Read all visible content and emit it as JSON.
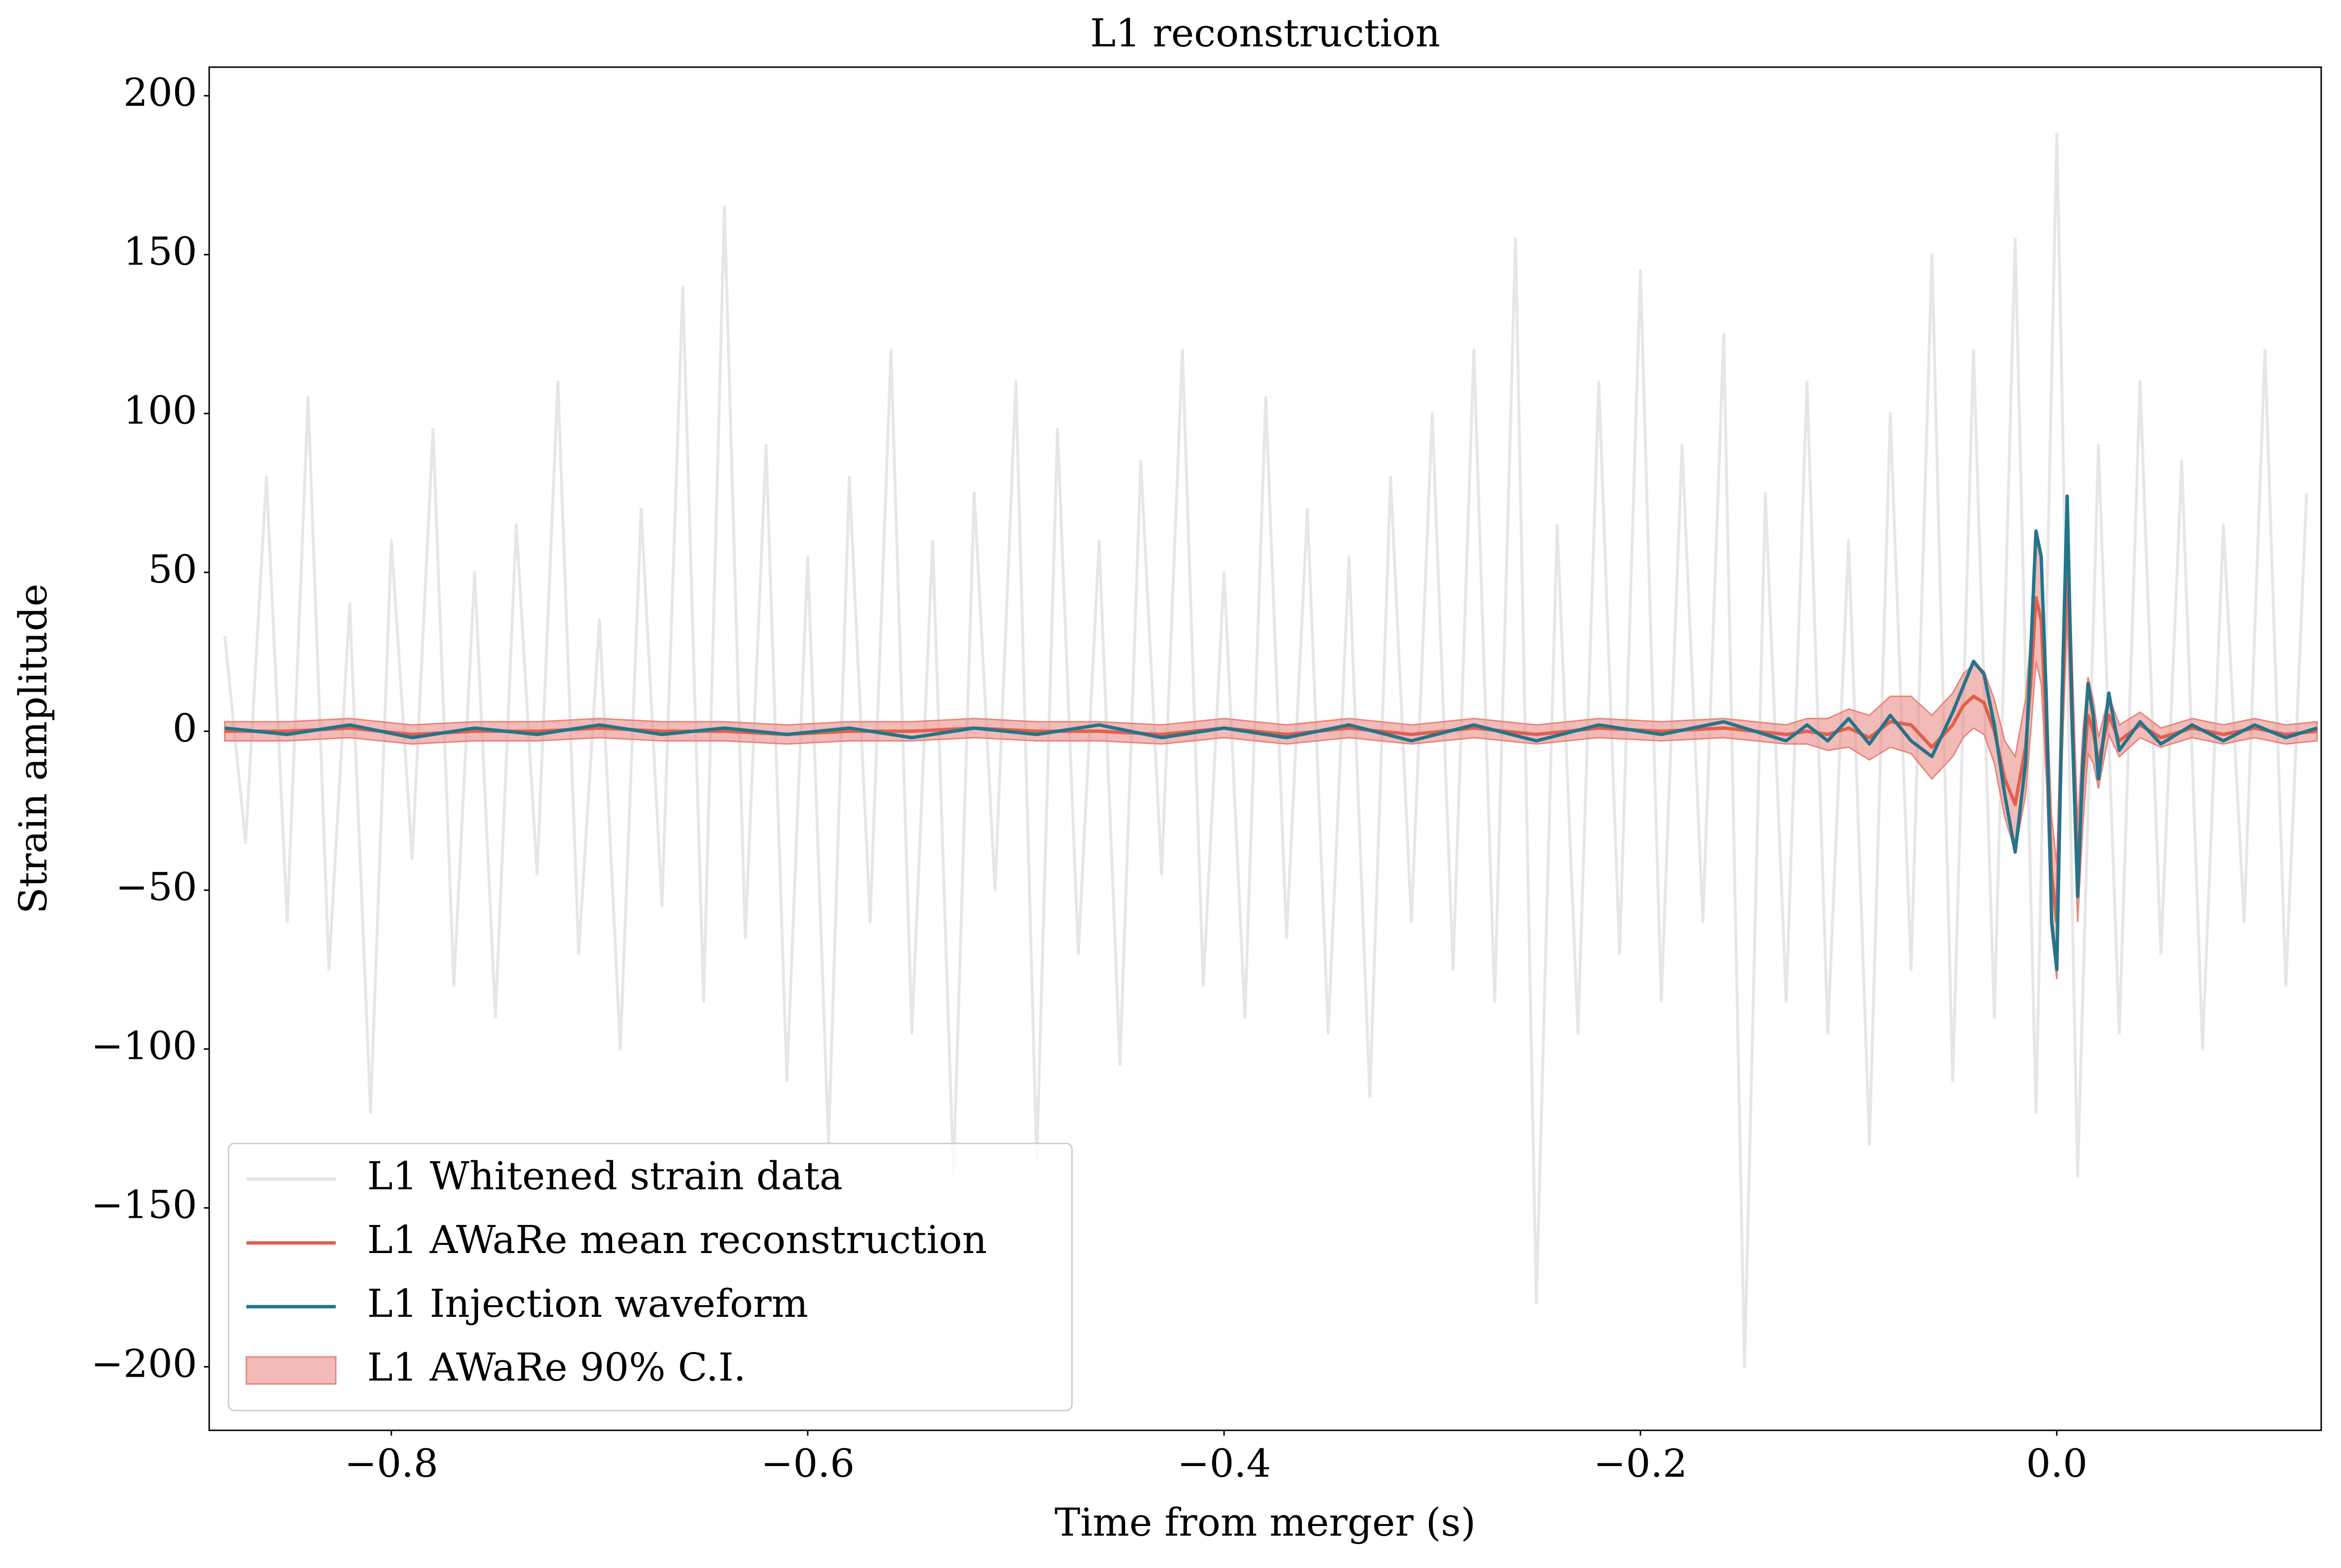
{
  "chart_data": {
    "type": "line",
    "title": "L1 reconstruction",
    "xlabel": "Time from merger (s)",
    "ylabel": "Strain amplitude",
    "xlim": [
      -0.8875,
      0.127
    ],
    "ylim": [
      -220,
      209
    ],
    "xticks": [
      {
        "value": -0.8,
        "label": "−0.8"
      },
      {
        "value": -0.6,
        "label": "−0.6"
      },
      {
        "value": -0.4,
        "label": "−0.4"
      },
      {
        "value": -0.2,
        "label": "−0.2"
      },
      {
        "value": 0,
        "label": "0.0"
      }
    ],
    "yticks": [
      {
        "value": -200,
        "label": "−200"
      },
      {
        "value": -150,
        "label": "−150"
      },
      {
        "value": -100,
        "label": "−100"
      },
      {
        "value": -50,
        "label": "−50"
      },
      0,
      50,
      100,
      150,
      200
    ],
    "grid": false,
    "legend": "lower left",
    "x": [
      -0.88,
      -0.85,
      -0.82,
      -0.79,
      -0.76,
      -0.73,
      -0.7,
      -0.67,
      -0.64,
      -0.61,
      -0.58,
      -0.55,
      -0.52,
      -0.49,
      -0.46,
      -0.43,
      -0.4,
      -0.37,
      -0.34,
      -0.31,
      -0.28,
      -0.25,
      -0.22,
      -0.19,
      -0.16,
      -0.13,
      -0.12,
      -0.11,
      -0.1,
      -0.09,
      -0.08,
      -0.07,
      -0.06,
      -0.05,
      -0.045,
      -0.04,
      -0.035,
      -0.03,
      -0.025,
      -0.02,
      -0.015,
      -0.0125,
      -0.01,
      -0.0075,
      -0.005,
      -0.0025,
      0,
      0.0025,
      0.005,
      0.0075,
      0.01,
      0.0125,
      0.015,
      0.0175,
      0.02,
      0.025,
      0.03,
      0.04,
      0.05,
      0.065,
      0.08,
      0.095,
      0.11,
      0.125
    ],
    "series": [
      {
        "name": "L1 Whitened strain data",
        "kind": "line",
        "color": "#e6e6e6",
        "x": [
          -0.88,
          -0.87,
          -0.86,
          -0.85,
          -0.84,
          -0.83,
          -0.82,
          -0.81,
          -0.8,
          -0.79,
          -0.78,
          -0.77,
          -0.76,
          -0.75,
          -0.74,
          -0.73,
          -0.72,
          -0.71,
          -0.7,
          -0.69,
          -0.68,
          -0.67,
          -0.66,
          -0.65,
          -0.64,
          -0.63,
          -0.62,
          -0.61,
          -0.6,
          -0.59,
          -0.58,
          -0.57,
          -0.56,
          -0.55,
          -0.54,
          -0.53,
          -0.52,
          -0.51,
          -0.5,
          -0.49,
          -0.48,
          -0.47,
          -0.46,
          -0.45,
          -0.44,
          -0.43,
          -0.42,
          -0.41,
          -0.4,
          -0.39,
          -0.38,
          -0.37,
          -0.36,
          -0.35,
          -0.34,
          -0.33,
          -0.32,
          -0.31,
          -0.3,
          -0.29,
          -0.28,
          -0.27,
          -0.26,
          -0.25,
          -0.24,
          -0.23,
          -0.22,
          -0.21,
          -0.2,
          -0.19,
          -0.18,
          -0.17,
          -0.16,
          -0.15,
          -0.14,
          -0.13,
          -0.12,
          -0.11,
          -0.1,
          -0.09,
          -0.08,
          -0.07,
          -0.06,
          -0.05,
          -0.04,
          -0.03,
          -0.02,
          -0.01,
          0,
          0.01,
          0.02,
          0.03,
          0.04,
          0.05,
          0.06,
          0.07,
          0.08,
          0.09,
          0.1,
          0.11,
          0.12
        ],
        "values": [
          30,
          -35,
          80,
          -60,
          105,
          -75,
          40,
          -120,
          60,
          -40,
          95,
          -80,
          50,
          -90,
          65,
          -45,
          110,
          -70,
          35,
          -100,
          70,
          -55,
          140,
          -85,
          165,
          -65,
          90,
          -110,
          55,
          -130,
          80,
          -60,
          120,
          -95,
          60,
          -140,
          75,
          -50,
          110,
          -135,
          95,
          -70,
          60,
          -105,
          85,
          -45,
          120,
          -80,
          50,
          -90,
          105,
          -65,
          70,
          -95,
          55,
          -115,
          80,
          -60,
          100,
          -75,
          120,
          -85,
          155,
          -180,
          65,
          -95,
          110,
          -70,
          145,
          -85,
          90,
          -60,
          125,
          -200,
          75,
          -85,
          110,
          -95,
          60,
          -130,
          100,
          -75,
          150,
          -110,
          120,
          -90,
          155,
          -120,
          188,
          -140,
          90,
          -95,
          110,
          -70,
          85,
          -100,
          65,
          -60,
          120,
          -80,
          75
        ]
      },
      {
        "name": "L1 AWaRe mean reconstruction",
        "kind": "line",
        "color": "#e0604d",
        "values": [
          0,
          0,
          1,
          -1,
          0,
          0,
          1,
          0,
          0,
          -1,
          0,
          0,
          1,
          0,
          0,
          -1,
          1,
          -1,
          1,
          -1,
          1,
          -1,
          1,
          0,
          1,
          -1,
          0,
          -1,
          1,
          -2,
          3,
          2,
          -5,
          2,
          8,
          11,
          9,
          0,
          -15,
          -23,
          -5,
          15,
          42,
          35,
          0,
          -45,
          -60,
          5,
          55,
          5,
          -45,
          -15,
          5,
          0,
          -10,
          5,
          -3,
          2,
          -2,
          1,
          -1,
          1,
          -1,
          0
        ]
      },
      {
        "name": "L1 Injection waveform",
        "kind": "line",
        "color": "#24748a",
        "values": [
          1,
          -1,
          2,
          -2,
          1,
          -1,
          2,
          -1,
          1,
          -1,
          1,
          -2,
          1,
          -1,
          2,
          -2,
          1,
          -2,
          2,
          -3,
          2,
          -3,
          2,
          -1,
          3,
          -3,
          2,
          -3,
          4,
          -4,
          5,
          -3,
          -8,
          6,
          14,
          22,
          18,
          2,
          -20,
          -38,
          -10,
          25,
          63,
          55,
          10,
          -60,
          -75,
          10,
          74,
          0,
          -52,
          -10,
          15,
          5,
          -15,
          12,
          -6,
          3,
          -4,
          2,
          -3,
          2,
          -2,
          1
        ]
      },
      {
        "name": "L1 AWaRe 90% C.I.",
        "kind": "band",
        "color": "#e8847c",
        "lower": [
          -3,
          -3,
          -2,
          -4,
          -3,
          -3,
          -2,
          -3,
          -3,
          -4,
          -3,
          -3,
          -2,
          -3,
          -3,
          -4,
          -2,
          -4,
          -2,
          -4,
          -2,
          -4,
          -2,
          -3,
          -2,
          -4,
          -4,
          -6,
          -5,
          -9,
          -5,
          -7,
          -15,
          -8,
          -2,
          1,
          -1,
          -10,
          -27,
          -38,
          -20,
          0,
          22,
          15,
          -15,
          -63,
          -78,
          -10,
          37,
          -10,
          -60,
          -30,
          -7,
          -10,
          -18,
          -1,
          -8,
          -2,
          -5,
          -2,
          -4,
          -2,
          -4,
          -3
        ],
        "upper": [
          3,
          3,
          4,
          2,
          3,
          3,
          4,
          3,
          3,
          2,
          3,
          3,
          4,
          3,
          3,
          2,
          4,
          2,
          4,
          2,
          4,
          2,
          4,
          3,
          4,
          2,
          4,
          4,
          7,
          5,
          11,
          11,
          5,
          12,
          18,
          21,
          19,
          10,
          -3,
          -8,
          10,
          30,
          62,
          55,
          15,
          -27,
          -42,
          20,
          73,
          20,
          -30,
          0,
          17,
          10,
          -2,
          11,
          2,
          6,
          1,
          4,
          2,
          4,
          2,
          3
        ]
      }
    ]
  }
}
